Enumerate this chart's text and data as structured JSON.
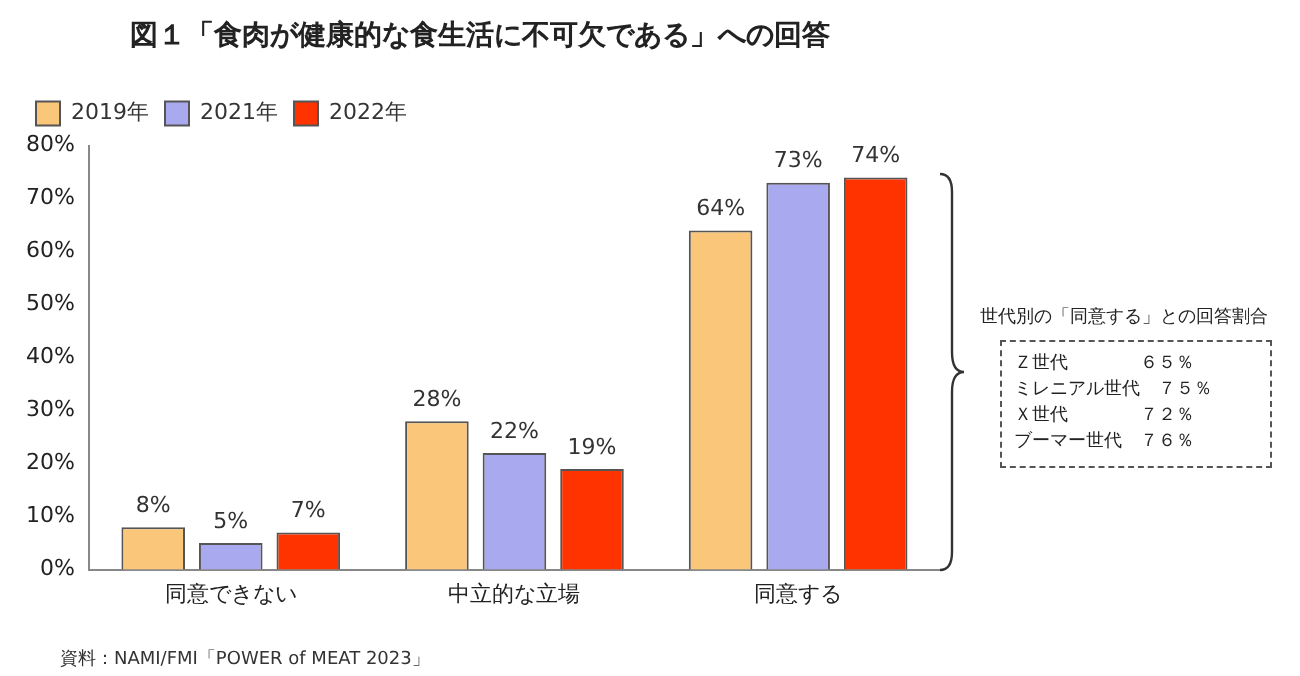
{
  "chart_data": {
    "type": "bar",
    "title": "図１「食肉が健康的な食生活に不可欠である」への回答",
    "categories": [
      "同意できない",
      "中立的な立場",
      "同意する"
    ],
    "series": [
      {
        "name": "2019年",
        "color": "#f9c67a",
        "values": [
          8,
          28,
          64
        ],
        "value_labels": [
          "8%",
          "28%",
          "64%"
        ]
      },
      {
        "name": "2021年",
        "color": "#a9a9f0",
        "values": [
          5,
          22,
          73
        ],
        "value_labels": [
          "5%",
          "22%",
          "73%"
        ]
      },
      {
        "name": "2022年",
        "color": "#ff3300",
        "values": [
          7,
          19,
          74
        ],
        "value_labels": [
          "7%",
          "19%",
          "74%"
        ]
      }
    ],
    "ylim": [
      0,
      80
    ],
    "yticks": [
      {
        "value": 0,
        "label": "0%"
      },
      {
        "value": 10,
        "label": "10%"
      },
      {
        "value": 20,
        "label": "20%"
      },
      {
        "value": 30,
        "label": "30%"
      },
      {
        "value": 40,
        "label": "40%"
      },
      {
        "value": 50,
        "label": "50%"
      },
      {
        "value": 60,
        "label": "60%"
      },
      {
        "value": 70,
        "label": "70%"
      },
      {
        "value": 80,
        "label": "80%"
      }
    ],
    "grid": false,
    "legend": "top left",
    "annotations": [
      "資料：NAMI/FMI「POWER of MEAT 2023」",
      "世代別の「同意する」との回答割合",
      "Ｚ世代　　　　６５％",
      "ミレニアル世代　７５％",
      "Ｘ世代　　　　７２％",
      "ブーマー世代　７６％"
    ]
  }
}
